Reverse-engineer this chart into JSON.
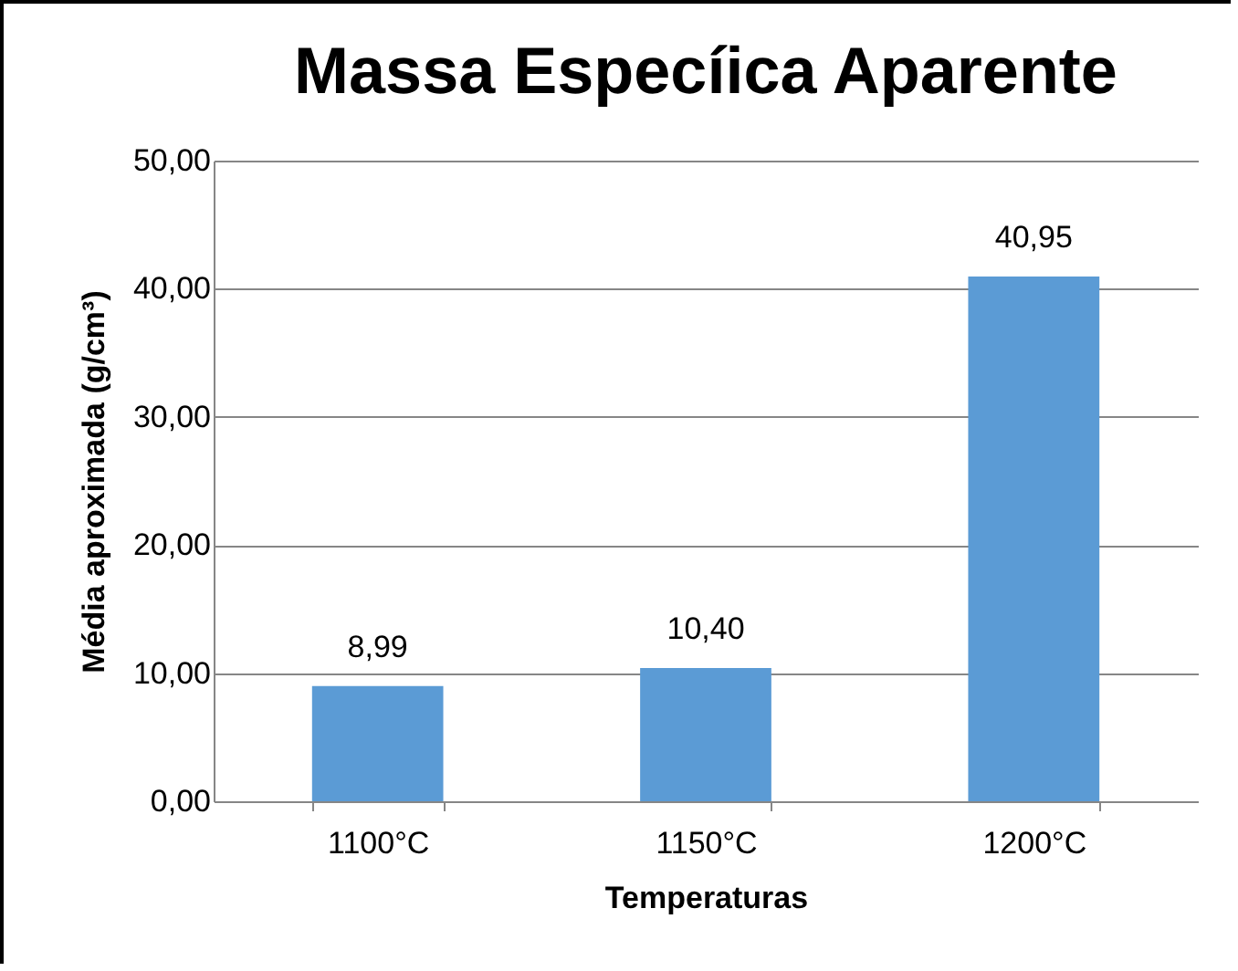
{
  "chart_data": {
    "type": "bar",
    "title": "Massa Especíica Aparente",
    "xlabel": "Temperaturas",
    "ylabel": "Média aproximada (g/cm³)",
    "categories": [
      "1100°C",
      "1150°C",
      "1200°C"
    ],
    "values": [
      8.99,
      10.4,
      40.95
    ],
    "value_labels": [
      "8,99",
      "10,40",
      "40,95"
    ],
    "color": "#5b9bd5",
    "ylim": [
      0,
      50
    ],
    "yticks": [
      {
        "value": 0,
        "label": "0,00"
      },
      {
        "value": 10,
        "label": "10,00"
      },
      {
        "value": 20,
        "label": "20,00"
      },
      {
        "value": 30,
        "label": "30,00"
      },
      {
        "value": 40,
        "label": "40,00"
      },
      {
        "value": 50,
        "label": "50,00"
      }
    ],
    "grid": "y"
  }
}
